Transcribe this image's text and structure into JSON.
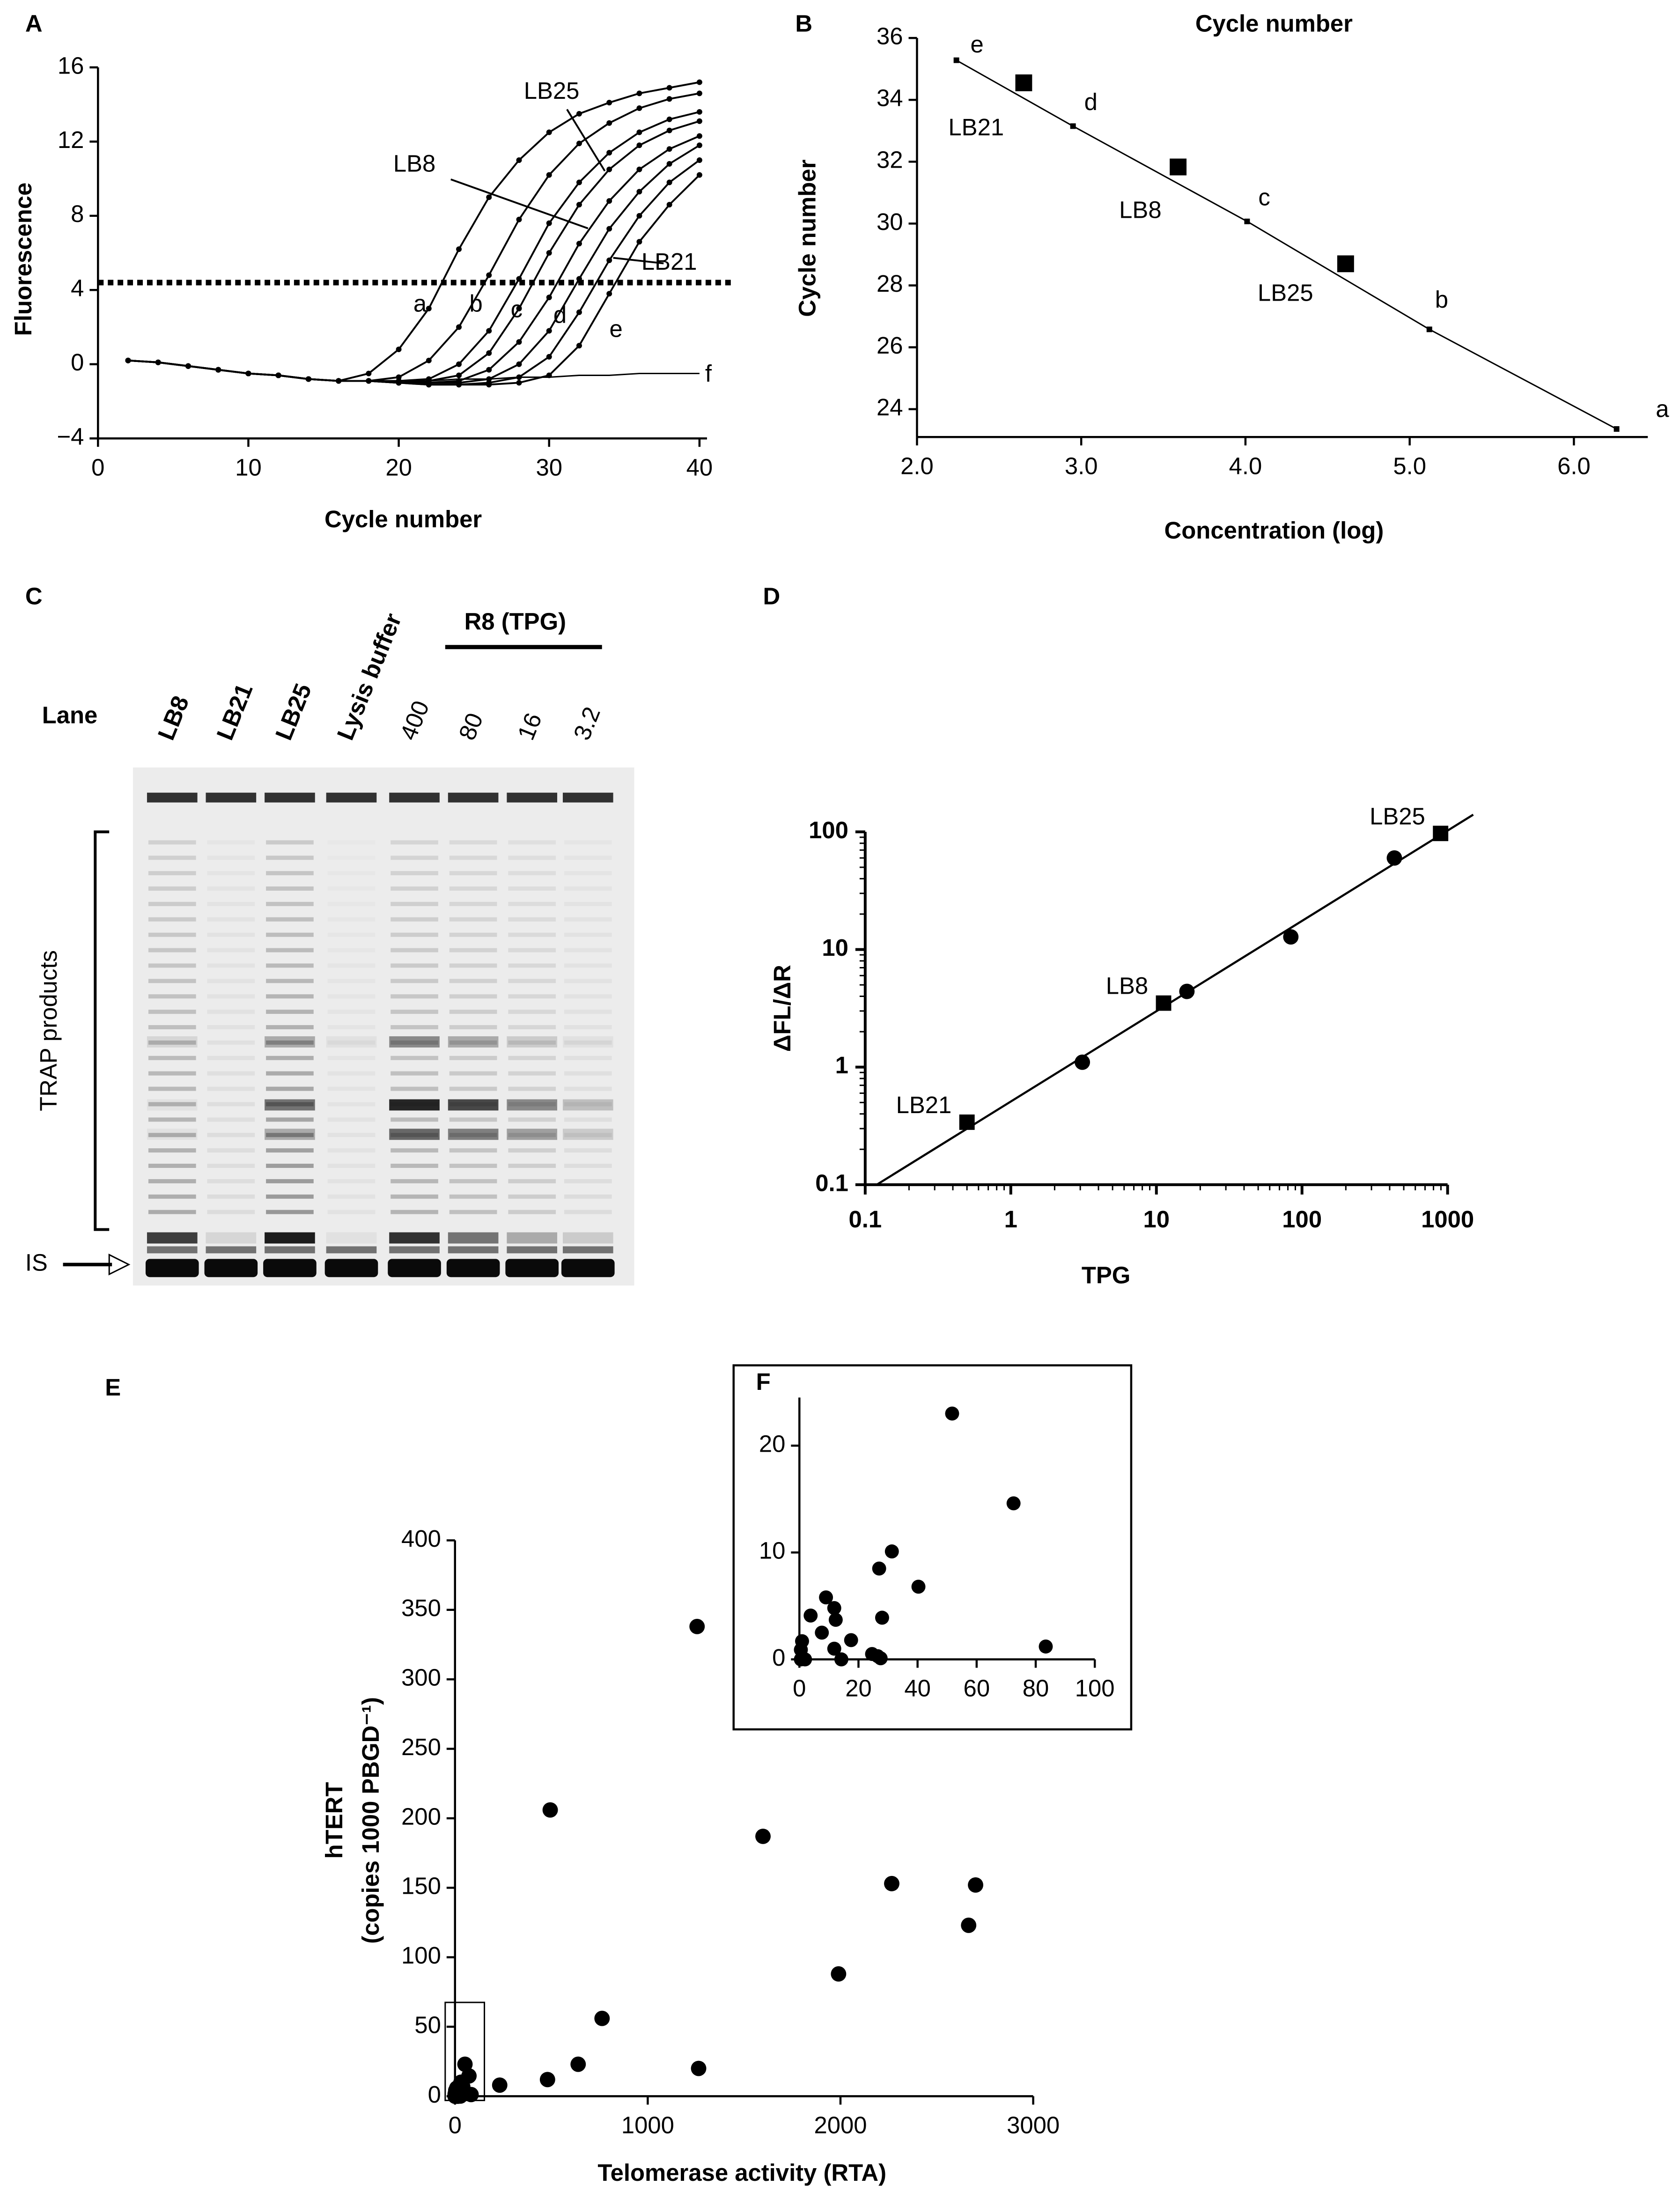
{
  "chart_data": [
    {
      "panel": "A",
      "type": "line",
      "x_label": "Cycle number",
      "y_label": "Fluorescence",
      "x": [
        2,
        4,
        6,
        8,
        10,
        12,
        14,
        16,
        18,
        20,
        22,
        24,
        26,
        28,
        30,
        32,
        34,
        36,
        38,
        40
      ],
      "xlim": [
        0,
        40.5
      ],
      "ylim": [
        -4,
        16
      ],
      "xticks": [
        0,
        10,
        20,
        30,
        40
      ],
      "yticks": [
        {
          "value": -4,
          "label": "−4"
        },
        0,
        4,
        8,
        12,
        16
      ],
      "threshold": 4.4,
      "color": "#000000",
      "series": [
        {
          "name": "a",
          "values": [
            0.2,
            0.1,
            -0.1,
            -0.3,
            -0.5,
            -0.6,
            -0.8,
            -0.9,
            -0.5,
            0.8,
            3,
            6.2,
            9,
            11,
            12.5,
            13.5,
            14.1,
            14.6,
            14.9,
            15.2
          ]
        },
        {
          "name": "b",
          "values": [
            0.2,
            0.1,
            -0.1,
            -0.3,
            -0.5,
            -0.6,
            -0.8,
            -0.9,
            -0.9,
            -0.7,
            0.2,
            2,
            4.8,
            7.8,
            10.2,
            11.9,
            13,
            13.8,
            14.3,
            14.6
          ]
        },
        {
          "name": "LB25",
          "values": [
            0.2,
            0.1,
            -0.1,
            -0.3,
            -0.5,
            -0.6,
            -0.8,
            -0.9,
            -0.9,
            -0.9,
            -0.8,
            0,
            1.8,
            4.6,
            7.6,
            9.8,
            11.4,
            12.5,
            13.2,
            13.6
          ]
        },
        {
          "name": "c",
          "values": [
            0.2,
            0.1,
            -0.1,
            -0.3,
            -0.5,
            -0.6,
            -0.8,
            -0.9,
            -0.9,
            -1,
            -0.9,
            -0.6,
            0.6,
            3,
            6,
            8.6,
            10.5,
            11.8,
            12.6,
            13.1
          ]
        },
        {
          "name": "LB8",
          "values": [
            0.2,
            0.1,
            -0.1,
            -0.3,
            -0.5,
            -0.6,
            -0.8,
            -0.9,
            -0.9,
            -1,
            -1,
            -0.9,
            -0.3,
            1.2,
            3.6,
            6.5,
            8.8,
            10.5,
            11.6,
            12.3
          ]
        },
        {
          "name": "d",
          "values": [
            0.2,
            0.1,
            -0.1,
            -0.3,
            -0.5,
            -0.6,
            -0.8,
            -0.9,
            -0.9,
            -1,
            -1,
            -1,
            -0.8,
            0,
            1.8,
            4.6,
            7.3,
            9.3,
            10.8,
            11.8
          ]
        },
        {
          "name": "LB21",
          "values": [
            0.2,
            0.1,
            -0.1,
            -0.3,
            -0.5,
            -0.6,
            -0.8,
            -0.9,
            -0.9,
            -1,
            -1.1,
            -1.1,
            -1,
            -0.7,
            0.4,
            2.8,
            5.6,
            8,
            9.8,
            11
          ]
        },
        {
          "name": "e",
          "values": [
            0.2,
            0.1,
            -0.1,
            -0.3,
            -0.5,
            -0.6,
            -0.8,
            -0.9,
            -0.9,
            -1,
            -1.1,
            -1.1,
            -1.1,
            -1,
            -0.6,
            1,
            3.8,
            6.6,
            8.6,
            10.2
          ]
        },
        {
          "name": "f",
          "markers": false,
          "values": [
            0.2,
            0.1,
            -0.1,
            -0.3,
            -0.5,
            -0.6,
            -0.8,
            -0.9,
            -0.9,
            -0.9,
            -0.9,
            -0.8,
            -0.8,
            -0.7,
            -0.7,
            -0.6,
            -0.6,
            -0.5,
            -0.5,
            -0.5
          ]
        }
      ]
    },
    {
      "panel": "B",
      "type": "scatter",
      "title": "Cycle number",
      "x_label": "Concentration (log)",
      "y_label": "Cycle number",
      "xlim": [
        2.0,
        6.45
      ],
      "ylim": [
        23.1,
        36
      ],
      "xticks": [
        {
          "value": 2,
          "label": "2.0"
        },
        {
          "value": 3,
          "label": "3.0"
        },
        {
          "value": 4,
          "label": "4.0"
        },
        {
          "value": 5,
          "label": "5.0"
        },
        {
          "value": 6,
          "label": "6.0"
        }
      ],
      "yticks": [
        24,
        26,
        28,
        30,
        32,
        34,
        36
      ],
      "series": [
        {
          "marker": "small",
          "fit_line": true,
          "x": [
            2.24,
            2.95,
            4.01,
            5.12,
            6.26
          ],
          "values": [
            35.28,
            33.15,
            30.07,
            26.58,
            23.36
          ],
          "labels": [
            "e",
            "d",
            "c",
            "b",
            "a"
          ]
        },
        {
          "marker": "large",
          "x": [
            2.65,
            3.59,
            4.61
          ],
          "values": [
            34.55,
            31.83,
            28.7
          ],
          "labels": [
            "LB21",
            "LB8",
            "LB25"
          ]
        }
      ]
    },
    {
      "panel": "C",
      "type": "gel",
      "lane_title": "Lane",
      "lanes": [
        "LB8",
        "LB21",
        "LB25",
        "Lysis buffer",
        "400",
        "80",
        "16",
        "3.2"
      ],
      "group_label": "R8 (TPG)",
      "bracket_label": "TRAP products",
      "marker_label": "IS"
    },
    {
      "panel": "D",
      "type": "scatter",
      "x_label": "TPG",
      "y_label": "ΔFL/ΔR",
      "log_x": true,
      "log_y": true,
      "xlim": [
        0.1,
        1000
      ],
      "ylim": [
        0.1,
        100
      ],
      "xticks": [
        0.1,
        1,
        10,
        100,
        1000
      ],
      "yticks": [
        0.1,
        1,
        10,
        100
      ],
      "fit": {
        "x": [
          0.12,
          1500
        ],
        "y": [
          0.1,
          140
        ]
      },
      "series": [
        {
          "marker": "circle",
          "x": [
            3.1,
            16.2,
            83.8,
            431
          ],
          "values": [
            1.1,
            4.4,
            12.8,
            60
          ]
        },
        {
          "marker": "square",
          "x": [
            0.5,
            11.2,
            895
          ],
          "values": [
            0.34,
            3.5,
            97
          ],
          "labels": [
            "LB21",
            "LB8",
            "LB25"
          ]
        }
      ]
    },
    {
      "panel": "E",
      "type": "scatter",
      "x_label": "Telomerase activity (RTA)",
      "y_label": [
        "hTERT",
        "(copies 1000 PBGD⁻¹)"
      ],
      "xlim": [
        0,
        3000
      ],
      "ylim": [
        0,
        400
      ],
      "xticks": [
        0,
        1000,
        2000,
        3000
      ],
      "yticks": [
        0,
        50,
        100,
        150,
        200,
        250,
        300,
        350,
        400
      ],
      "x": [
        1256,
        494,
        1598,
        2266,
        2701,
        2665,
        1990,
        763,
        639,
        1264,
        480,
        232,
        51.7,
        72.5,
        31.3,
        40.3,
        27,
        28,
        9,
        3.8,
        11.8,
        12.3,
        7.6,
        17.5,
        11.8,
        14.2,
        0.9,
        0.5,
        0.5,
        1.9,
        24.6,
        26.5,
        27.5,
        83.4
      ],
      "values": [
        338,
        206,
        187,
        153,
        152,
        123,
        88,
        56,
        23,
        20,
        12,
        8,
        23,
        14.6,
        10.1,
        6.8,
        8.5,
        3.9,
        5.8,
        4.1,
        4.8,
        3.7,
        2.5,
        1.8,
        1,
        0,
        1.7,
        0.9,
        0,
        0,
        0.5,
        0.3,
        0.1,
        1.2
      ]
    },
    {
      "panel": "F",
      "type": "scatter",
      "xlim": [
        0,
        100
      ],
      "ylim": [
        0,
        24.5
      ],
      "xticks": [
        0,
        20,
        40,
        60,
        80,
        100
      ],
      "yticks": [
        0,
        10,
        20
      ],
      "x": [
        51.7,
        72.5,
        31.3,
        40.3,
        27,
        28,
        9,
        3.8,
        11.8,
        12.3,
        7.6,
        17.5,
        11.8,
        14.2,
        0.9,
        0.5,
        0.5,
        1.9,
        24.6,
        26.5,
        27.5,
        83.4
      ],
      "values": [
        23,
        14.6,
        10.1,
        6.8,
        8.5,
        3.9,
        5.8,
        4.1,
        4.8,
        3.7,
        2.5,
        1.8,
        1,
        0,
        1.7,
        0.9,
        0,
        0,
        0.5,
        0.3,
        0.1,
        1.2
      ]
    }
  ]
}
